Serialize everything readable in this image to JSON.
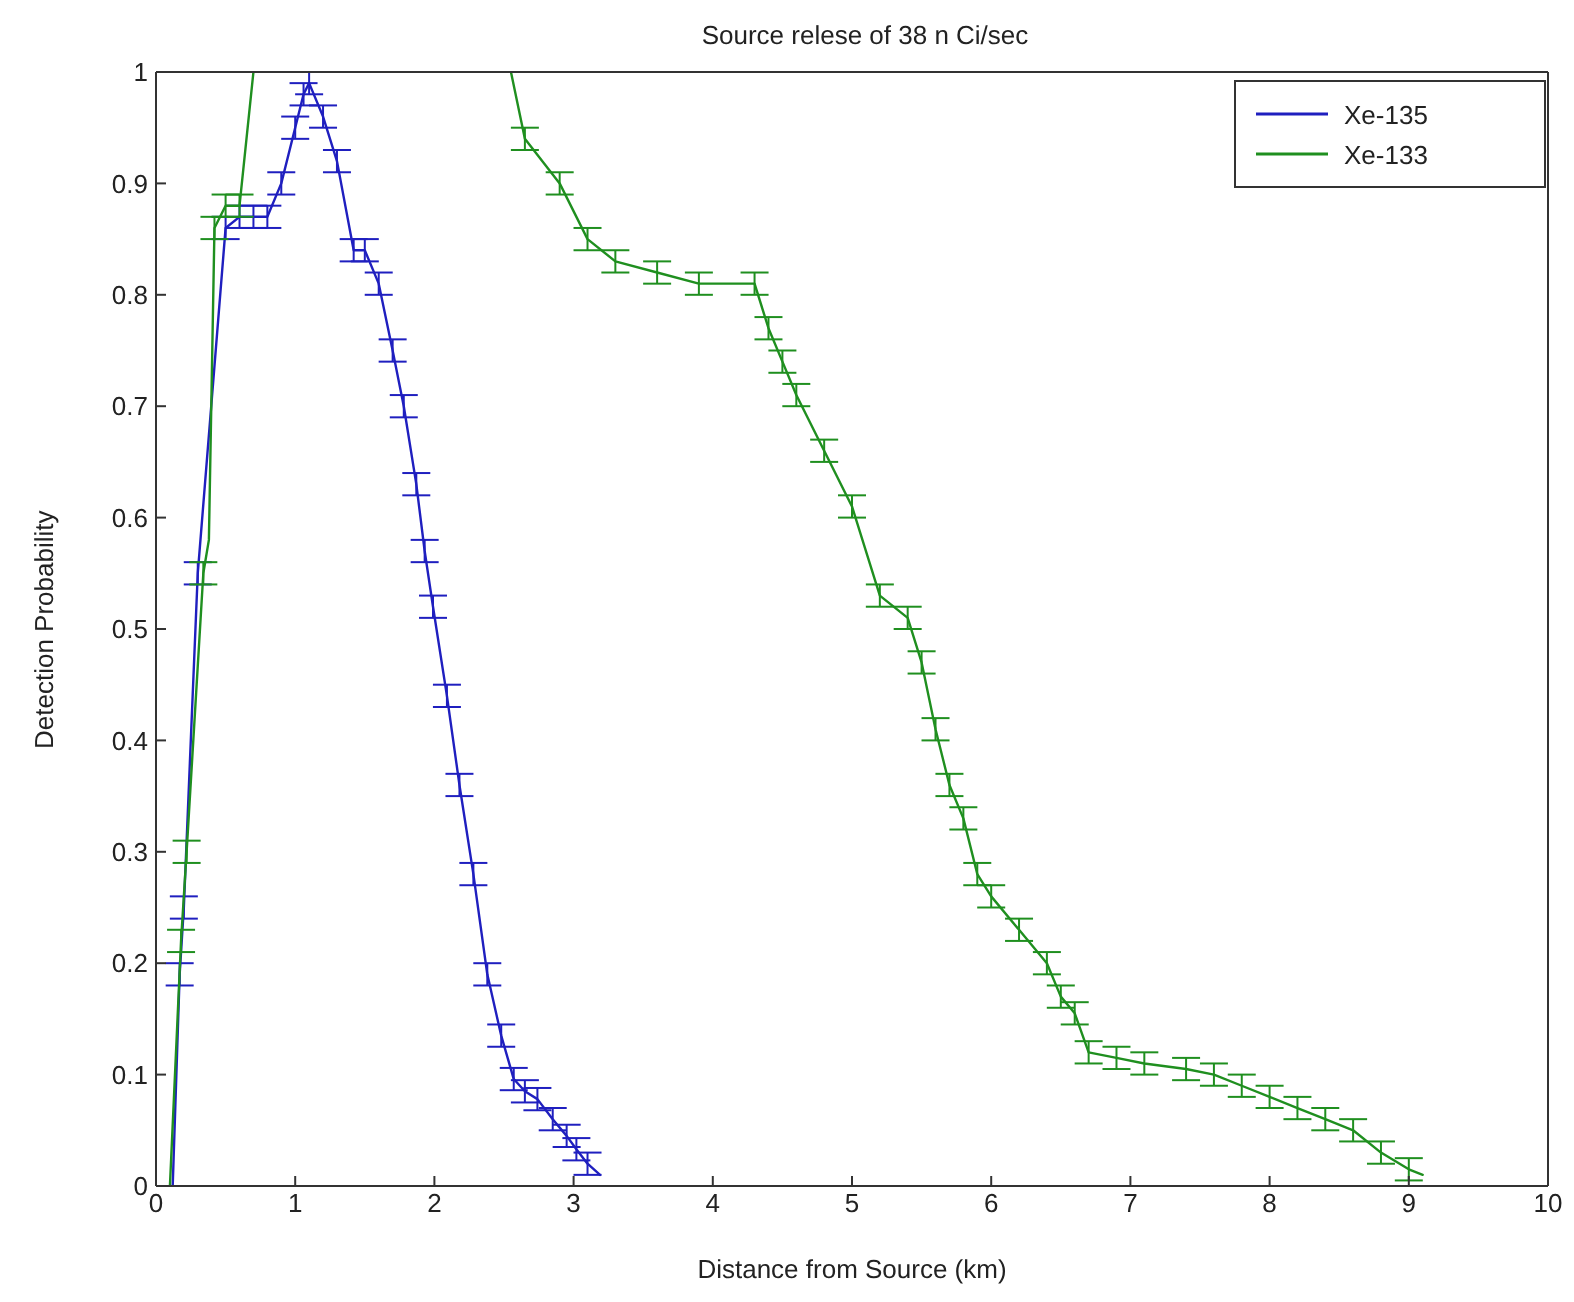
{
  "chart_data": {
    "type": "line",
    "title": "Source relese of 38 n Ci/sec",
    "xlabel": "Distance from Source (km)",
    "ylabel": "Detection Probability",
    "xlim": [
      0,
      10
    ],
    "xticks": [
      0,
      1,
      2,
      3,
      4,
      5,
      6,
      7,
      8,
      9,
      10
    ],
    "ylim": [
      0,
      1
    ],
    "yticks": [
      0,
      0.1,
      0.2,
      0.3,
      0.4,
      0.5,
      0.6,
      0.7,
      0.8,
      0.9,
      1
    ],
    "legend": "top right",
    "marker": "none",
    "line_style": "solid",
    "series": [
      {
        "name": "Xe-135",
        "color": "#1f1fbf",
        "x": [
          0.12,
          0.17,
          0.2,
          0.3,
          0.5,
          0.6,
          0.7,
          0.8,
          0.9,
          1.0,
          1.06,
          1.1,
          1.2,
          1.3,
          1.42,
          1.5,
          1.6,
          1.7,
          1.78,
          1.87,
          1.93,
          1.99,
          2.09,
          2.18,
          2.28,
          2.38,
          2.48,
          2.57,
          2.65,
          2.74,
          2.85,
          2.95,
          3.02,
          3.1,
          3.19
        ],
        "values": [
          0,
          0.19,
          0.25,
          0.55,
          0.86,
          0.87,
          0.87,
          0.87,
          0.9,
          0.95,
          0.98,
          0.99,
          0.96,
          0.92,
          0.84,
          0.84,
          0.81,
          0.75,
          0.7,
          0.63,
          0.57,
          0.52,
          0.44,
          0.36,
          0.28,
          0.19,
          0.135,
          0.096,
          0.085,
          0.078,
          0.06,
          0.045,
          0.033,
          0.02,
          0.01
        ],
        "errors": [
          null,
          0.01,
          0.01,
          0.01,
          0.01,
          0.01,
          0.01,
          0.01,
          0.01,
          0.01,
          0.01,
          0.01,
          0.01,
          0.01,
          0.01,
          0.01,
          0.01,
          0.01,
          0.01,
          0.01,
          0.01,
          0.01,
          0.01,
          0.01,
          0.01,
          0.01,
          0.01,
          0.01,
          0.01,
          0.01,
          0.01,
          0.01,
          0.01,
          0.01,
          null
        ]
      },
      {
        "name": "Xe-133",
        "color": "#1f8f1f",
        "x": [
          0.1,
          0.18,
          0.22,
          0.34,
          0.38,
          0.42,
          0.5,
          0.6,
          0.7,
          1.0,
          2.55,
          2.65,
          2.9,
          3.1,
          3.3,
          3.6,
          3.9,
          4.3,
          4.4,
          4.5,
          4.6,
          4.8,
          5.0,
          5.2,
          5.4,
          5.5,
          5.6,
          5.7,
          5.8,
          5.9,
          6.0,
          6.2,
          6.4,
          6.5,
          6.6,
          6.7,
          6.9,
          7.1,
          7.4,
          7.6,
          7.8,
          8.0,
          8.2,
          8.4,
          8.6,
          8.8,
          9.0,
          9.1
        ],
        "values": [
          0,
          0.22,
          0.3,
          0.55,
          0.58,
          0.86,
          0.88,
          0.88,
          1.0,
          null,
          1.0,
          0.94,
          0.9,
          0.85,
          0.83,
          0.82,
          0.81,
          0.81,
          0.77,
          0.74,
          0.71,
          0.66,
          0.61,
          0.53,
          0.51,
          0.47,
          0.41,
          0.36,
          0.33,
          0.28,
          0.26,
          0.23,
          0.2,
          0.17,
          0.155,
          0.12,
          0.115,
          0.11,
          0.105,
          0.1,
          0.09,
          0.08,
          0.07,
          0.06,
          0.05,
          0.03,
          0.015,
          0.01
        ],
        "errors": [
          null,
          0.01,
          0.01,
          0.01,
          null,
          0.01,
          0.01,
          0.01,
          null,
          null,
          null,
          0.01,
          0.01,
          0.01,
          0.01,
          0.01,
          0.01,
          0.01,
          0.01,
          0.01,
          0.01,
          0.01,
          0.01,
          0.01,
          0.01,
          0.01,
          0.01,
          0.01,
          0.01,
          0.01,
          0.01,
          0.01,
          0.01,
          0.01,
          0.01,
          0.01,
          0.01,
          0.01,
          0.01,
          0.01,
          0.01,
          0.01,
          0.01,
          0.01,
          0.01,
          0.01,
          0.01,
          null
        ]
      }
    ]
  }
}
